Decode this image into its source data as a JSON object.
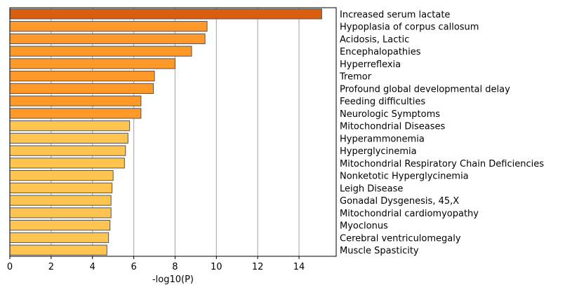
{
  "chart_data": {
    "type": "bar",
    "orientation": "horizontal",
    "xlabel": "-log10(P)",
    "xlim": [
      0,
      15.8
    ],
    "xticks": [
      0,
      2,
      4,
      6,
      8,
      10,
      12,
      14
    ],
    "grid": "vertical",
    "categories": [
      "Increased serum lactate",
      "Hypoplasia of corpus callosum",
      "Acidosis, Lactic",
      "Encephalopathies",
      "Hyperreflexia",
      "Tremor",
      "Profound global developmental delay",
      "Feeding difficulties",
      "Neurologic Symptoms",
      "Mitochondrial Diseases",
      "Hyperammonemia",
      "Hyperglycinemia",
      "Mitochondrial Respiratory Chain Deficiencies",
      "Nonketotic Hyperglycinemia",
      "Leigh Disease",
      "Gonadal Dysgenesis, 45,X",
      "Mitochondrial cardiomyopathy",
      "Myoclonus",
      "Cerebral ventriculomegaly",
      "Muscle Spasticity"
    ],
    "values": [
      15.1,
      9.55,
      9.45,
      8.8,
      8.0,
      7.0,
      6.95,
      6.35,
      6.35,
      5.8,
      5.72,
      5.6,
      5.55,
      5.0,
      4.95,
      4.9,
      4.9,
      4.85,
      4.78,
      4.7
    ],
    "colors": [
      "#d95f0e",
      "#fe9929",
      "#fe9929",
      "#fe9929",
      "#fe9929",
      "#fe9929",
      "#fe9929",
      "#fe9929",
      "#fe9929",
      "#fec44f",
      "#fec44f",
      "#fec44f",
      "#fec44f",
      "#fec44f",
      "#fec44f",
      "#fec44f",
      "#fec44f",
      "#fec44f",
      "#fec44f",
      "#fec44f"
    ],
    "bar_edge_color": "#555555",
    "grid_color": "#b0b0b0"
  }
}
